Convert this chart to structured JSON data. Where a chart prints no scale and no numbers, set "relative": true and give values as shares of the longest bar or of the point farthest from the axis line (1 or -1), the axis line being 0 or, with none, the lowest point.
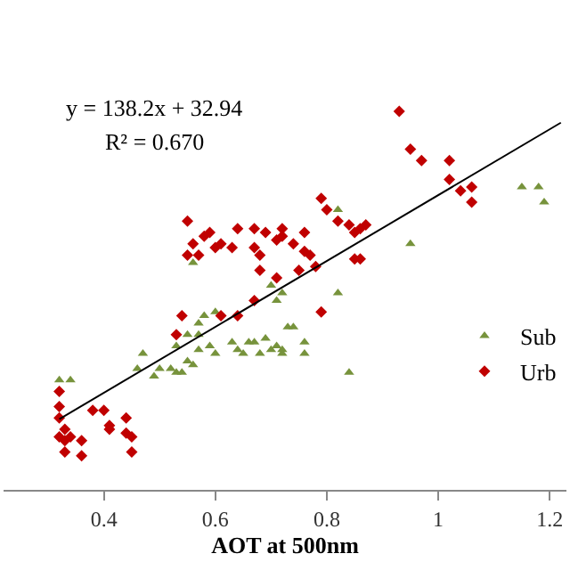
{
  "chart_data": {
    "type": "scatter",
    "relative": true,
    "xlabel": "AOT at 500nm",
    "xlim": [
      0.22,
      1.23
    ],
    "xticks": [
      0.4,
      0.6,
      0.8,
      1,
      1.2
    ],
    "legend": "right",
    "tick_labels": "x",
    "annotations": [
      "y = 138.2x + 32.94",
      "R² = 0.670"
    ],
    "series": [
      {
        "name": "Sub",
        "color": "#77933c",
        "marker": "triangle",
        "x": [
          0.82,
          0.95,
          1.15,
          1.18,
          1.19,
          0.56,
          0.7,
          0.72,
          0.71,
          0.82,
          0.6,
          0.58,
          0.57,
          0.47,
          0.55,
          0.53,
          0.57,
          0.59,
          0.6,
          0.57,
          0.55,
          0.52,
          0.5,
          0.46,
          0.53,
          0.49,
          0.54,
          0.56,
          0.59,
          0.63,
          0.66,
          0.67,
          0.69,
          0.71,
          0.72,
          0.73,
          0.74,
          0.76,
          0.76,
          0.72,
          0.7,
          0.65,
          0.64,
          0.68,
          0.84,
          0.32,
          0.34
        ],
        "values": [
          0.74,
          0.65,
          0.8,
          0.8,
          0.76,
          0.6,
          0.54,
          0.52,
          0.5,
          0.52,
          0.47,
          0.46,
          0.44,
          0.36,
          0.41,
          0.38,
          0.41,
          0.38,
          0.36,
          0.37,
          0.34,
          0.32,
          0.32,
          0.32,
          0.31,
          0.3,
          0.31,
          0.33,
          null,
          0.39,
          0.39,
          0.39,
          0.4,
          0.38,
          0.37,
          0.43,
          0.43,
          0.39,
          0.36,
          0.36,
          0.37,
          0.36,
          0.37,
          0.36,
          0.31,
          0.29,
          0.29
        ]
      },
      {
        "name": "Urb",
        "color": "#c00000",
        "marker": "diamond",
        "x": [
          0.93,
          0.95,
          0.97,
          1.02,
          1.04,
          1.02,
          1.06,
          1.06,
          0.79,
          0.8,
          0.82,
          0.84,
          0.86,
          0.87,
          0.85,
          0.55,
          0.56,
          0.58,
          0.59,
          0.6,
          0.57,
          0.55,
          0.61,
          0.63,
          0.64,
          0.67,
          0.69,
          0.72,
          0.71,
          0.72,
          0.74,
          0.76,
          0.76,
          0.77,
          0.68,
          0.67,
          0.85,
          0.86,
          0.68,
          0.75,
          0.78,
          0.71,
          0.67,
          0.64,
          0.61,
          0.54,
          0.79,
          0.53,
          0.32,
          0.32,
          0.32,
          0.33,
          0.38,
          0.4,
          0.41,
          0.44,
          0.44,
          0.45,
          0.45,
          0.32,
          0.33,
          0.34,
          0.36,
          0.33,
          0.36,
          0.41
        ],
        "values": [
          1,
          0.9,
          0.87,
          0.87,
          0.79,
          0.82,
          0.8,
          0.76,
          0.77,
          0.74,
          0.71,
          0.7,
          0.69,
          0.7,
          0.68,
          0.71,
          0.65,
          0.67,
          0.68,
          0.64,
          0.62,
          0.62,
          0.65,
          0.64,
          0.69,
          0.69,
          0.68,
          0.69,
          0.66,
          0.67,
          0.65,
          0.68,
          0.63,
          0.62,
          0.62,
          0.64,
          0.61,
          0.61,
          0.58,
          0.58,
          0.59,
          0.56,
          0.5,
          0.46,
          0.46,
          0.46,
          0.47,
          0.41,
          0.26,
          0.22,
          0.19,
          0.16,
          0.21,
          0.21,
          0.16,
          0.19,
          0.15,
          0.14,
          0.1,
          0.14,
          0.13,
          0.14,
          0.13,
          0.1,
          0.09,
          0.17
        ]
      },
      {
        "type": "line",
        "color": "#000000",
        "marker": "none",
        "x": [
          0.32,
          1.22
        ],
        "values": [
          0.187,
          0.97
        ]
      }
    ]
  }
}
